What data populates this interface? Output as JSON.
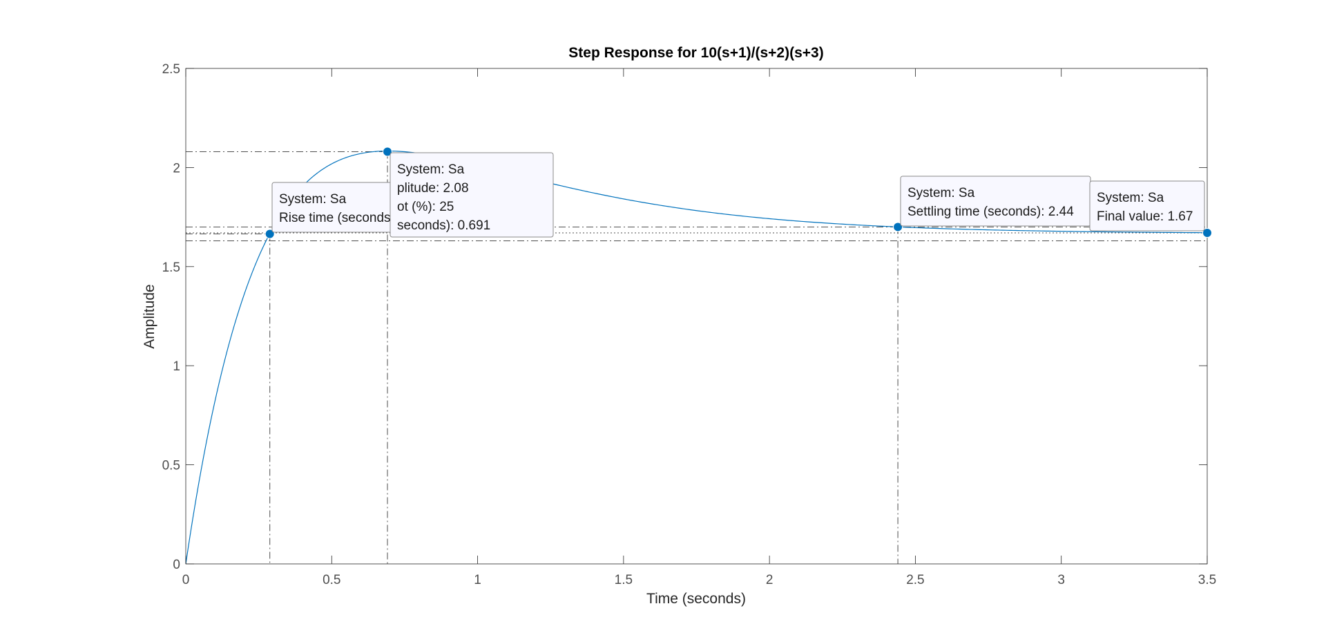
{
  "chart_data": {
    "type": "line",
    "title": "Step Response for 10(s+1)/(s+2)(s+3)",
    "xlabel": "Time (seconds)",
    "ylabel": "Amplitude",
    "xlim": [
      0,
      3.5
    ],
    "ylim": [
      0,
      2.5
    ],
    "xticks": [
      0,
      0.5,
      1,
      1.5,
      2,
      2.5,
      3,
      3.5
    ],
    "xtick_labels": [
      "0",
      "0.5",
      "1",
      "1.5",
      "2",
      "2.5",
      "3",
      "3.5"
    ],
    "yticks": [
      0,
      0.5,
      1,
      1.5,
      2,
      2.5
    ],
    "ytick_labels": [
      "0",
      "0.5",
      "1",
      "1.5",
      "2",
      "2.5"
    ],
    "grid": false,
    "series": [
      {
        "color": "#0072BD",
        "function": "step response of 10(s+1)/((s+2)(s+3))",
        "final_value": 1.6667
      }
    ],
    "reference_lines": {
      "final_value": 1.67,
      "settling_band": [
        1.63,
        1.7
      ],
      "peak_amplitude": 2.08,
      "rise_time": 0.288,
      "peak_time": 0.691,
      "settling_time": 2.44
    },
    "markers": [
      {
        "x": 0.288,
        "y": 1.665,
        "color": "#0072BD"
      },
      {
        "x": 0.691,
        "y": 2.08,
        "color": "#0072BD"
      },
      {
        "x": 2.44,
        "y": 1.7,
        "color": "#0072BD"
      },
      {
        "x": 3.5,
        "y": 1.67,
        "color": "#0072BD"
      }
    ],
    "datatips": [
      {
        "lines": [
          "System: Sa",
          "Rise time (seconds): 0.288"
        ]
      },
      {
        "lines": [
          "System: Sa",
          "Peak amplitude: 2.08",
          "Overshoot (%): 25",
          "At time (seconds): 0.691"
        ],
        "visible_lines": [
          "System: Sa",
          "plitude: 2.08",
          "ot (%): 25",
          "seconds): 0.691"
        ]
      },
      {
        "lines": [
          "System: Sa",
          "Settling time (seconds): 2.44"
        ]
      },
      {
        "lines": [
          "System: Sa",
          "Final value: 1.67"
        ]
      }
    ]
  }
}
